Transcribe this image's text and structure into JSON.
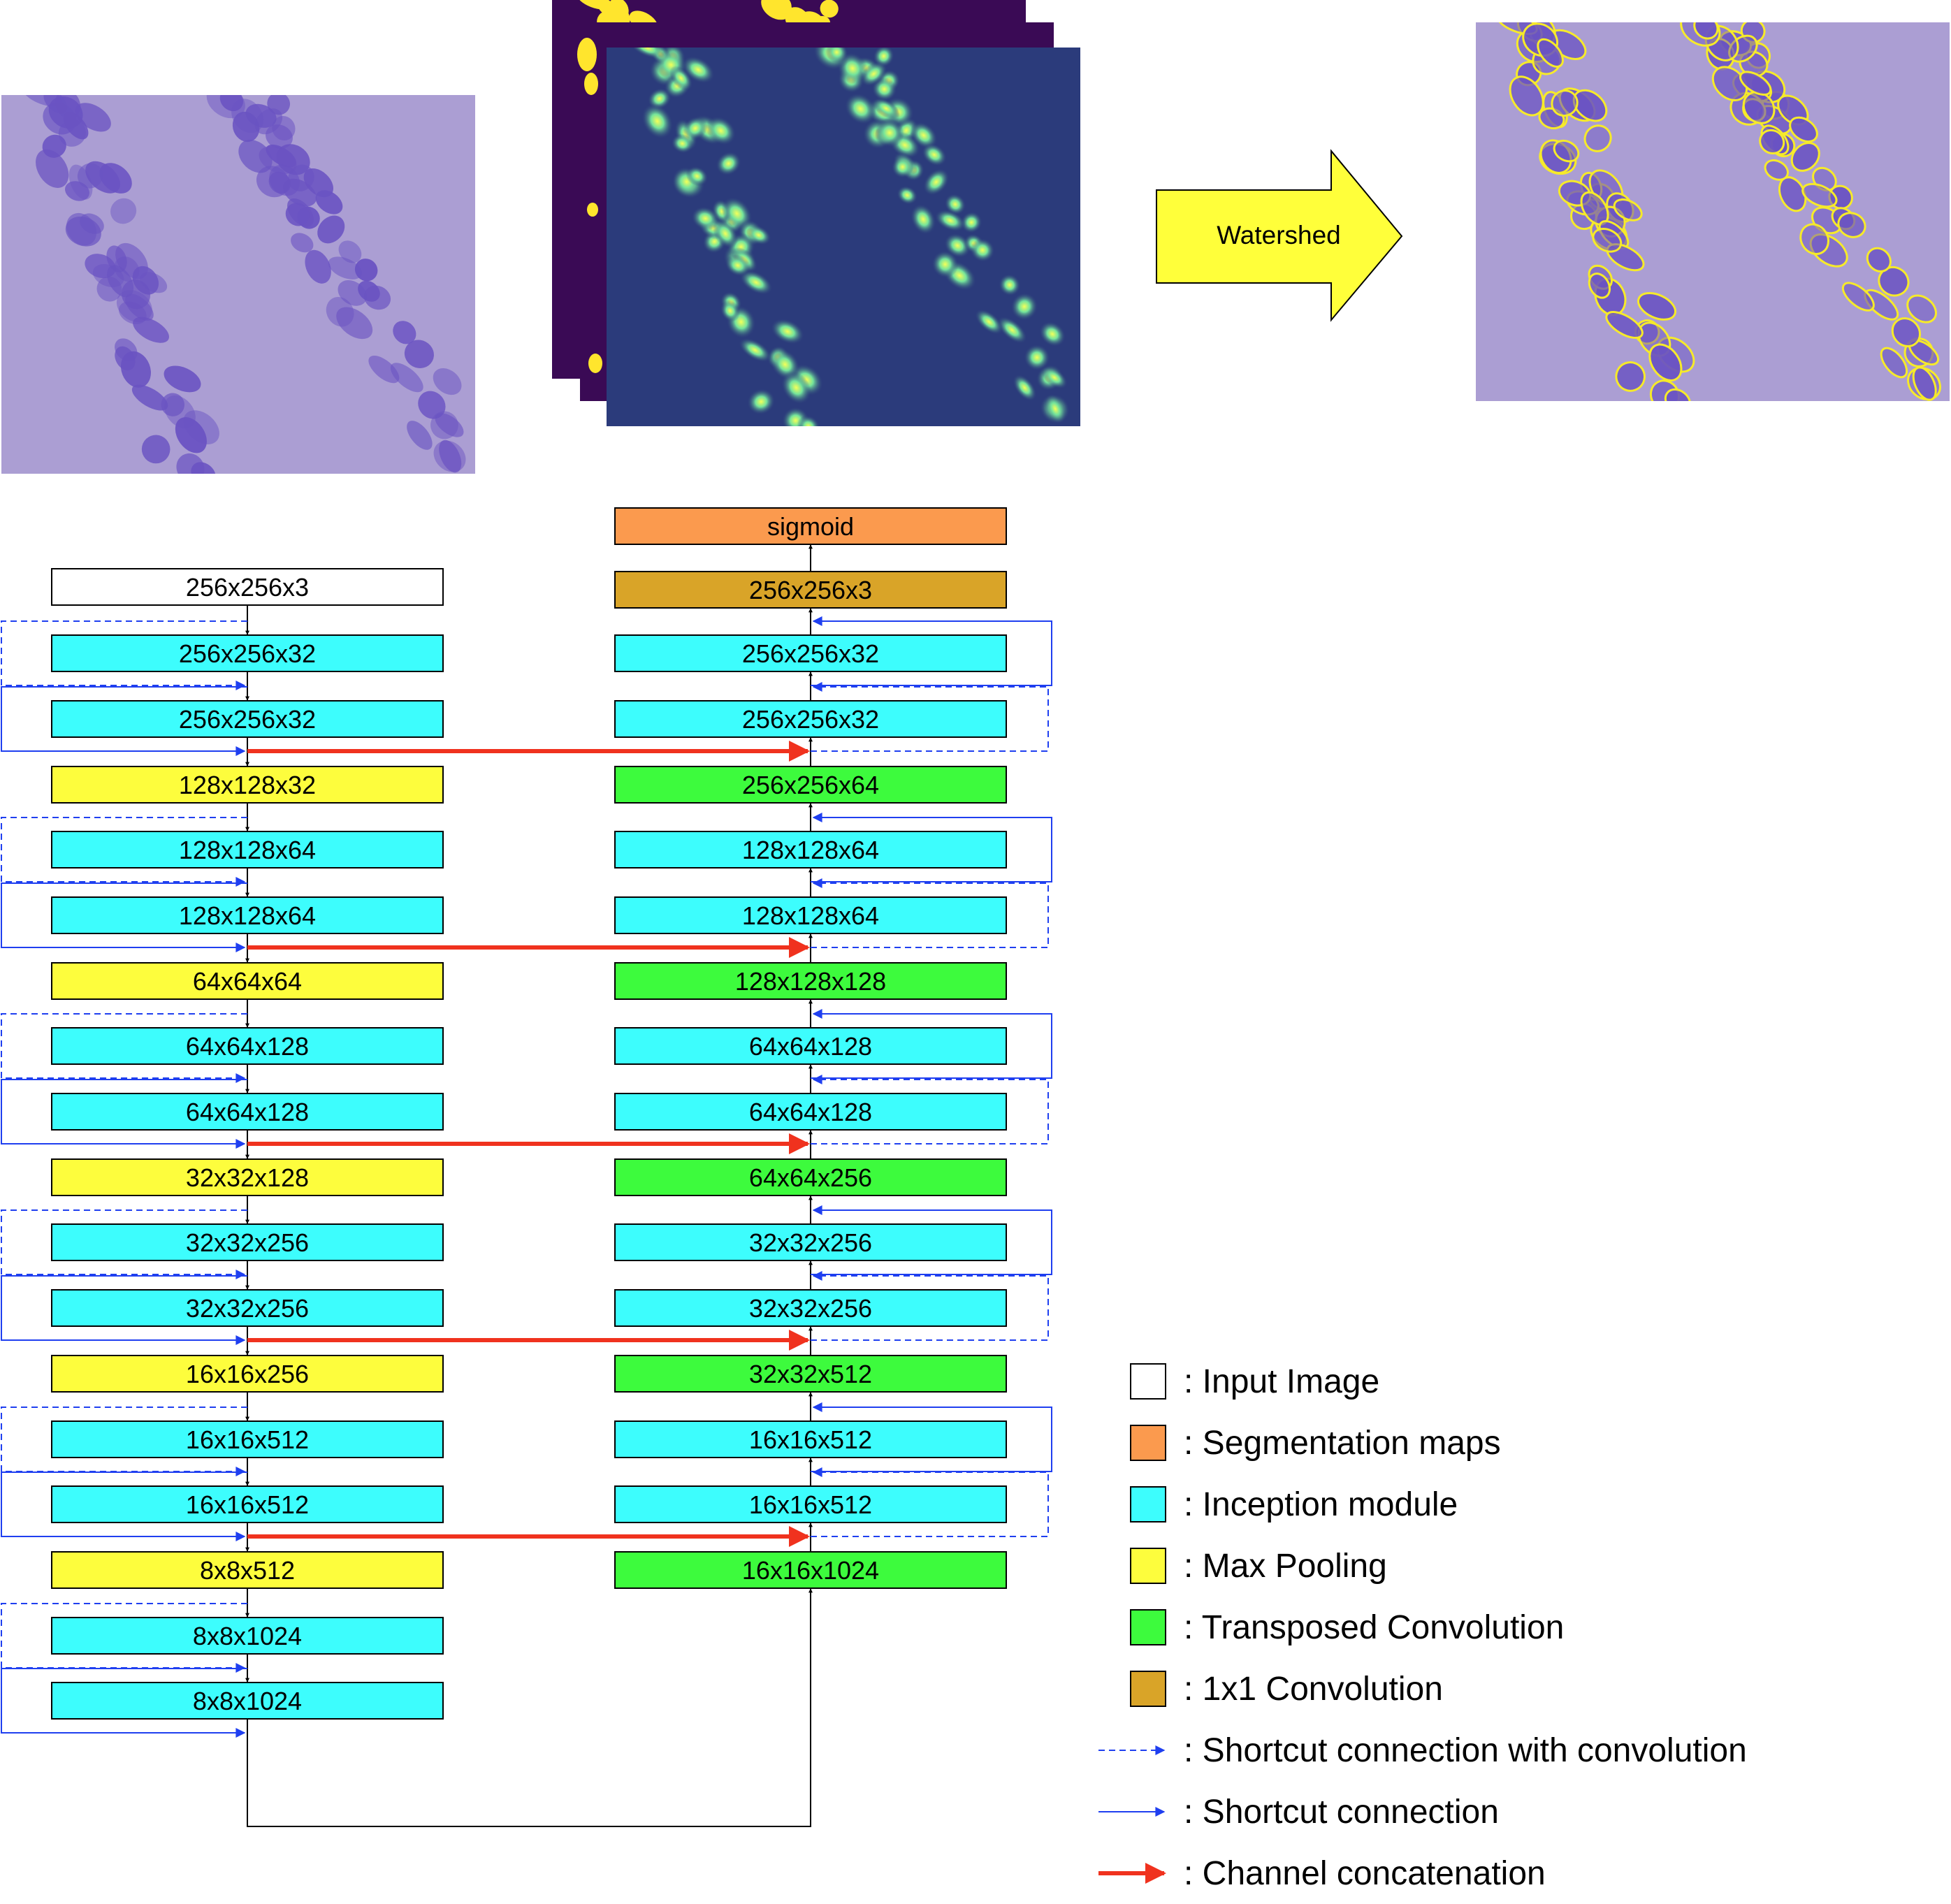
{
  "watershed_label": "Watershed",
  "colors": {
    "input": "#ffffff",
    "seg": "#fb9a4e",
    "inc": "#3dfdfd",
    "pool": "#fdfd3d",
    "tconv": "#3dfb3d",
    "conv1": "#d9a428",
    "stroke": "#000000",
    "shortcut": "#1f3ff0",
    "concat": "#f0321e",
    "watershed_arrow": "#ffff3a",
    "stain_bg": "#ab9ed3",
    "nucleus": "#6a53c2",
    "heat_bg": "#2b3b7b",
    "heat_glow": "#6fd9a0",
    "mask_bg": "#3a0a55",
    "mask_blob": "#ffe52d",
    "contour": "#f6ea2a"
  },
  "encoder": [
    {
      "label": "256x256x3",
      "type": "input"
    },
    {
      "label": "256x256x32",
      "type": "inc"
    },
    {
      "label": "256x256x32",
      "type": "inc"
    },
    {
      "label": "128x128x32",
      "type": "pool"
    },
    {
      "label": "128x128x64",
      "type": "inc"
    },
    {
      "label": "128x128x64",
      "type": "inc"
    },
    {
      "label": "64x64x64",
      "type": "pool"
    },
    {
      "label": "64x64x128",
      "type": "inc"
    },
    {
      "label": "64x64x128",
      "type": "inc"
    },
    {
      "label": "32x32x128",
      "type": "pool"
    },
    {
      "label": "32x32x256",
      "type": "inc"
    },
    {
      "label": "32x32x256",
      "type": "inc"
    },
    {
      "label": "16x16x256",
      "type": "pool"
    },
    {
      "label": "16x16x512",
      "type": "inc"
    },
    {
      "label": "16x16x512",
      "type": "inc"
    },
    {
      "label": "8x8x512",
      "type": "pool"
    },
    {
      "label": "8x8x1024",
      "type": "inc"
    },
    {
      "label": "8x8x1024",
      "type": "inc"
    }
  ],
  "decoder": [
    {
      "label": "sigmoid",
      "type": "seg"
    },
    {
      "label": "256x256x3",
      "type": "conv1"
    },
    {
      "label": "256x256x32",
      "type": "inc"
    },
    {
      "label": "256x256x32",
      "type": "inc"
    },
    {
      "label": "256x256x64",
      "type": "tconv"
    },
    {
      "label": "128x128x64",
      "type": "inc"
    },
    {
      "label": "128x128x64",
      "type": "inc"
    },
    {
      "label": "128x128x128",
      "type": "tconv"
    },
    {
      "label": "64x64x128",
      "type": "inc"
    },
    {
      "label": "64x64x128",
      "type": "inc"
    },
    {
      "label": "64x64x256",
      "type": "tconv"
    },
    {
      "label": "32x32x256",
      "type": "inc"
    },
    {
      "label": "32x32x256",
      "type": "inc"
    },
    {
      "label": "32x32x512",
      "type": "tconv"
    },
    {
      "label": "16x16x512",
      "type": "inc"
    },
    {
      "label": "16x16x512",
      "type": "inc"
    },
    {
      "label": "16x16x1024",
      "type": "tconv"
    }
  ],
  "legend": [
    {
      "kind": "box",
      "type": "input",
      "label": ": Input Image"
    },
    {
      "kind": "box",
      "type": "seg",
      "label": ": Segmentation maps"
    },
    {
      "kind": "box",
      "type": "inc",
      "label": ": Inception module"
    },
    {
      "kind": "box",
      "type": "pool",
      "label": ": Max Pooling"
    },
    {
      "kind": "box",
      "type": "tconv",
      "label": ": Transposed Convolution"
    },
    {
      "kind": "box",
      "type": "conv1",
      "label": ": 1x1 Convolution"
    },
    {
      "kind": "dashed",
      "type": "shortcut",
      "label": ": Shortcut connection with convolution"
    },
    {
      "kind": "solid",
      "type": "shortcut",
      "label": ": Shortcut connection"
    },
    {
      "kind": "thick",
      "type": "concat",
      "label": ": Channel concatenation"
    }
  ]
}
